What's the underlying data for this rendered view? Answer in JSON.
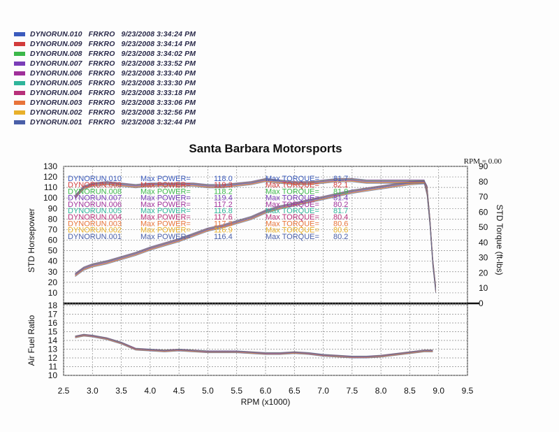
{
  "legend": [
    {
      "label": "DYNORUN.010   FRKRO   9/23/2008 3:34:24 PM",
      "color": "#3b5bbd"
    },
    {
      "label": "DYNORUN.009   FRKRO   9/23/2008 3:34:14 PM",
      "color": "#d23c3c"
    },
    {
      "label": "DYNORUN.008   FRKRO   9/23/2008 3:34:02 PM",
      "color": "#3cb84a"
    },
    {
      "label": "DYNORUN.007   FRKRO   9/23/2008 3:33:52 PM",
      "color": "#7a3db8"
    },
    {
      "label": "DYNORUN.006   FRKRO   9/23/2008 3:33:40 PM",
      "color": "#a0309a"
    },
    {
      "label": "DYNORUN.005   FRKRO   9/23/2008 3:33:30 PM",
      "color": "#2fb59a"
    },
    {
      "label": "DYNORUN.004   FRKRO   9/23/2008 3:33:18 PM",
      "color": "#b8307a"
    },
    {
      "label": "DYNORUN.003   FRKRO   9/23/2008 3:33:06 PM",
      "color": "#e8743a"
    },
    {
      "label": "DYNORUN.002   FRKRO   9/23/2008 3:32:56 PM",
      "color": "#e8b02a"
    },
    {
      "label": "DYNORUN.001   FRKRO   9/23/2008 3:32:44 PM",
      "color": "#4a5fa8"
    }
  ],
  "chart_data": [
    {
      "type": "line",
      "title": "Santa Barbara Motorsports",
      "rpm_readout": "RPM = 0.00",
      "xlabel": "RPM (x1000)",
      "ylabel": "STD Horsepower",
      "ylabel_right": "STD Torque (ft-lbs)",
      "xlim": [
        2.5,
        9.5
      ],
      "ylim": [
        0,
        130
      ],
      "ylim_right": [
        0,
        90
      ],
      "x_ticks": [
        "2.5",
        "3.0",
        "3.5",
        "4.0",
        "4.5",
        "5.0",
        "5.5",
        "6.0",
        "6.5",
        "7.0",
        "7.5",
        "8.0",
        "8.5",
        "9.0",
        "9.5"
      ],
      "y_ticks": [
        "0",
        "10",
        "20",
        "30",
        "40",
        "50",
        "60",
        "70",
        "80",
        "90",
        "100",
        "110",
        "120",
        "130"
      ],
      "y_ticks_right": [
        "0",
        "10",
        "20",
        "30",
        "40",
        "50",
        "60",
        "70",
        "80",
        "90"
      ],
      "grid": true,
      "annotations": [
        {
          "run": "DYNORUN.010",
          "power_label": "Max POWER=",
          "power": "118.0",
          "torque_label": "Max TORQUE=",
          "torque": "81.7",
          "color": "#3b5bbd"
        },
        {
          "run": "DYNORUN.009",
          "power_label": "Max POWER=",
          "power": "119.3",
          "torque_label": "Max TORQUE=",
          "torque": "82.1",
          "color": "#d23c3c"
        },
        {
          "run": "DYNORUN.008",
          "power_label": "Max POWER=",
          "power": "118.2",
          "torque_label": "Max TORQUE=",
          "torque": "81.9",
          "color": "#3cb84a"
        },
        {
          "run": "DYNORUN.007",
          "power_label": "Max POWER=",
          "power": "119.4",
          "torque_label": "Max TORQUE=",
          "torque": "81.4",
          "color": "#7a3db8"
        },
        {
          "run": "DYNORUN.006",
          "power_label": "Max POWER=",
          "power": "117.2",
          "torque_label": "Max TORQUE=",
          "torque": "80.2",
          "color": "#a0309a"
        },
        {
          "run": "DYNORUN.005",
          "power_label": "Max POWER=",
          "power": "116.8",
          "torque_label": "Max TORQUE=",
          "torque": "81.7",
          "color": "#2fb59a"
        },
        {
          "run": "DYNORUN.004",
          "power_label": "Max POWER=",
          "power": "117.6",
          "torque_label": "Max TORQUE=",
          "torque": "80.4",
          "color": "#b8307a"
        },
        {
          "run": "DYNORUN.003",
          "power_label": "Max POWER=",
          "power": "117.3",
          "torque_label": "Max TORQUE=",
          "torque": "80.6",
          "color": "#e8743a"
        },
        {
          "run": "DYNORUN.002",
          "power_label": "Max POWER=",
          "power": "116.9",
          "torque_label": "Max TORQUE=",
          "torque": "80.6",
          "color": "#e8b02a"
        },
        {
          "run": "DYNORUN.001",
          "power_label": "Max POWER=",
          "power": "116.4",
          "torque_label": "Max TORQUE=",
          "torque": "80.2",
          "color": "#4a5fa8"
        }
      ],
      "series": [
        {
          "name": "STD Horsepower",
          "axis": "left",
          "x": [
            2.7,
            2.85,
            3.0,
            3.25,
            3.5,
            3.75,
            4.0,
            4.25,
            4.5,
            4.75,
            5.0,
            5.25,
            5.5,
            5.75,
            6.0,
            6.25,
            6.5,
            6.75,
            7.0,
            7.25,
            7.5,
            7.75,
            8.0,
            8.25,
            8.5,
            8.75,
            8.8,
            8.85,
            8.9,
            8.95
          ],
          "y": [
            27,
            33,
            36,
            39,
            43,
            47,
            52,
            56,
            60,
            65,
            70,
            73,
            77,
            81,
            87,
            91,
            94,
            97,
            100,
            103,
            106,
            108,
            110,
            112,
            114,
            115,
            110,
            80,
            40,
            15
          ]
        },
        {
          "name": "STD Torque (ft-lbs)",
          "axis": "right",
          "x": [
            2.7,
            2.85,
            3.0,
            3.25,
            3.5,
            3.75,
            4.0,
            4.25,
            4.5,
            4.75,
            5.0,
            5.25,
            5.5,
            5.75,
            6.0,
            6.25,
            6.5,
            6.75,
            7.0,
            7.25,
            7.5,
            7.75,
            8.0,
            8.25,
            8.5,
            8.75,
            8.8,
            8.85,
            8.9,
            8.95
          ],
          "y": [
            70,
            76,
            78,
            79,
            78,
            77,
            78,
            78,
            78,
            78,
            77,
            77,
            78,
            79,
            81,
            80,
            79,
            79,
            80,
            81,
            81,
            80,
            80,
            80,
            80,
            80,
            72,
            52,
            25,
            8
          ]
        }
      ]
    },
    {
      "type": "line",
      "ylabel": "Air Fuel Ratio",
      "ylim": [
        10,
        18
      ],
      "y_ticks": [
        "10",
        "11",
        "12",
        "13",
        "14",
        "15",
        "16",
        "17",
        "18"
      ],
      "grid": true,
      "series": [
        {
          "name": "Air Fuel Ratio",
          "x": [
            2.7,
            2.85,
            3.0,
            3.25,
            3.5,
            3.75,
            4.0,
            4.25,
            4.5,
            4.75,
            5.0,
            5.25,
            5.5,
            5.75,
            6.0,
            6.25,
            6.5,
            6.75,
            7.0,
            7.25,
            7.5,
            7.75,
            8.0,
            8.25,
            8.5,
            8.75,
            8.9
          ],
          "y": [
            14.4,
            14.6,
            14.5,
            14.2,
            13.7,
            13.0,
            12.9,
            12.8,
            12.9,
            12.8,
            12.7,
            12.7,
            12.7,
            12.6,
            12.5,
            12.5,
            12.6,
            12.5,
            12.3,
            12.2,
            12.1,
            12.1,
            12.2,
            12.4,
            12.6,
            12.8,
            12.8
          ]
        }
      ]
    }
  ]
}
